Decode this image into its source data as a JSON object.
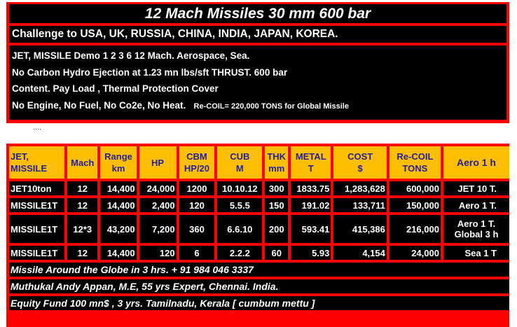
{
  "header": {
    "title": "12   Mach  Missiles 30 mm 600 bar",
    "challenge": "Challenge to USA, UK, RUSSIA, CHINA, INDIA, JAPAN, KOREA.",
    "lines": [
      "JET,  MISSILE  Demo  1 2 3 6 12 Mach. Aerospace, Sea.",
      "No Carbon Hydro Ejection  at 1.23 mn lbs/sft THRUST. 600 bar",
      "Content.  Pay Load , Thermal Protection Cover",
      "No Engine, No Fuel, No Co2e, No Heat."
    ],
    "recoil_note": "Re-COIL= 220,000  TONS  for Global Missile"
  },
  "dots": "....",
  "table": {
    "headers": [
      [
        "JET,",
        "MISSILE"
      ],
      [
        "Mach"
      ],
      [
        "Range",
        "km"
      ],
      [
        "HP"
      ],
      [
        "CBM",
        "HP/20"
      ],
      [
        "CUB",
        "M"
      ],
      [
        "THK",
        "mm"
      ],
      [
        "METAL",
        "T"
      ],
      [
        "COST",
        "$"
      ],
      [
        "Re-COIL",
        "TONS"
      ],
      [
        "Aero 1 h"
      ]
    ],
    "rows": [
      [
        "JET10ton",
        "12",
        "14,400",
        "24,000",
        "1200",
        "10.10.12",
        "300",
        "1833.75",
        "1,283,628",
        "600,000",
        "JET 10 T."
      ],
      [
        "MISSILE1T",
        "12",
        "14,400",
        "2,400",
        "120",
        "5.5.5",
        "150",
        "191.02",
        "133,711",
        "150,000",
        "Aero 1 T."
      ],
      [
        "MISSILE1T",
        "12*3",
        "43,200",
        "7,200",
        "360",
        "6.6.10",
        "200",
        "593.41",
        "415,386",
        "216,000",
        "Aero 1 T.|Global 3 h"
      ],
      [
        "MISSILE1T",
        "12",
        "14,400",
        "120",
        "6",
        "2.2.2",
        "60",
        "5.93",
        "4,154",
        "24,000",
        "Sea 1 T"
      ]
    ],
    "footer": [
      "Missile  Around  the  Globe  in 3 hrs.          + 91 984 046 3337",
      "Muthukal Andy Appan, M.E, 55 yrs Expert, Chennai. India.",
      "Equity Fund  100 mn$ , 3 yrs.  Tamilnadu, Kerala [ cumbum mettu ]"
    ]
  },
  "colors": {
    "frame": "#ff0000",
    "panel": "#000000",
    "header_cell": "#ffbf00",
    "header_text": "#1f1fa0",
    "text": "#ffffff"
  }
}
